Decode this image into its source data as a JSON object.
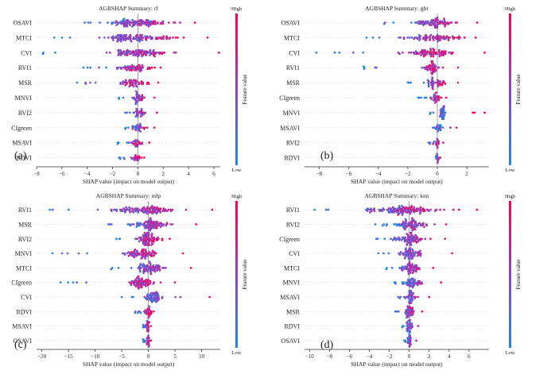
{
  "colors": {
    "low": "#1e88e5",
    "high": "#ff0052",
    "grid": "#d0d0d0",
    "axis": "#333333",
    "zero": "#888888"
  },
  "chart_data": [
    {
      "type": "scatter",
      "subtype": "shap-beeswarm",
      "title": "AGBSHAP Summary: rf",
      "panel_label": "(a)",
      "xlabel": "SHAP value (impact on model output)",
      "colorbar_label": "Feature value",
      "colorbar_high": "High",
      "colorbar_low": "Low",
      "xlim": [
        -8,
        6.5
      ],
      "xticks": [
        -8,
        -6,
        -4,
        -2,
        0,
        2,
        4,
        6
      ],
      "features": [
        {
          "name": "OSAVI",
          "min": -4.2,
          "max": 4.5,
          "spread": 2.2,
          "density": 110
        },
        {
          "name": "MTCI",
          "min": -6.6,
          "max": 5.5,
          "spread": 2.6,
          "density": 110
        },
        {
          "name": "CVI",
          "min": -7.5,
          "max": 6.4,
          "spread": 1.8,
          "density": 100
        },
        {
          "name": "RVI1",
          "min": -4.3,
          "max": 1.8,
          "spread": 1.2,
          "density": 60
        },
        {
          "name": "MSR",
          "min": -4.8,
          "max": 1.6,
          "spread": 1.0,
          "density": 55
        },
        {
          "name": "MNVI",
          "min": -1.5,
          "max": 1.3,
          "spread": 0.5,
          "density": 35
        },
        {
          "name": "RVI2",
          "min": -1.0,
          "max": 1.5,
          "spread": 0.5,
          "density": 30
        },
        {
          "name": "CIgreen",
          "min": -1.0,
          "max": 1.3,
          "spread": 0.4,
          "density": 30
        },
        {
          "name": "MSAVI",
          "min": -1.6,
          "max": 0.9,
          "spread": 0.4,
          "density": 28
        },
        {
          "name": "RDVI",
          "min": -1.5,
          "max": 0.5,
          "spread": 0.3,
          "density": 24
        }
      ]
    },
    {
      "type": "scatter",
      "subtype": "shap-beeswarm",
      "title": "AGBSHAP Summary: gbr",
      "panel_label": "(b)",
      "xlabel": "SHAP value (impact on model output)",
      "colorbar_label": "Feature value",
      "colorbar_high": "High",
      "colorbar_low": "Low",
      "xlim": [
        -9,
        3.5
      ],
      "xticks": [
        -8,
        -6,
        -4,
        -2,
        0,
        2
      ],
      "features": [
        {
          "name": "OSAVI",
          "min": -3.6,
          "max": 2.7,
          "spread": 1.4,
          "density": 80
        },
        {
          "name": "MTCI",
          "min": -4.8,
          "max": 2.6,
          "spread": 1.6,
          "density": 80
        },
        {
          "name": "CVI",
          "min": -8.2,
          "max": 3.2,
          "spread": 1.5,
          "density": 80
        },
        {
          "name": "RVI1",
          "min": -5.0,
          "max": 1.4,
          "spread": 0.6,
          "density": 50
        },
        {
          "name": "MSR",
          "min": -2.0,
          "max": 1.4,
          "spread": 0.5,
          "density": 45
        },
        {
          "name": "CIgreen",
          "min": -1.3,
          "max": 0.6,
          "spread": 0.3,
          "density": 30
        },
        {
          "name": "MNVI",
          "min": -0.5,
          "max": 3.2,
          "spread": 0.2,
          "density": 35
        },
        {
          "name": "MSAVI",
          "min": -0.3,
          "max": 1.3,
          "spread": 0.2,
          "density": 22
        },
        {
          "name": "RVI2",
          "min": -0.6,
          "max": 0.4,
          "spread": 0.15,
          "density": 18
        },
        {
          "name": "RDVI",
          "min": -0.1,
          "max": 0.2,
          "spread": 0.05,
          "density": 12
        }
      ]
    },
    {
      "type": "scatter",
      "subtype": "shap-beeswarm",
      "title": "AGBSHAP Summary: mlp",
      "panel_label": "(c)",
      "xlabel": "SHAP value (impact on model output)",
      "colorbar_label": "Feature value",
      "colorbar_high": "High",
      "colorbar_low": "Low",
      "xlim": [
        -21,
        13.5
      ],
      "xticks": [
        -20,
        -15,
        -10,
        -5,
        0,
        5,
        10
      ],
      "features": [
        {
          "name": "RVI1",
          "min": -18.5,
          "max": 12.0,
          "spread": 5.0,
          "density": 110
        },
        {
          "name": "MSR",
          "min": -7.5,
          "max": 9.0,
          "spread": 3.0,
          "density": 90
        },
        {
          "name": "RVI2",
          "min": -6.0,
          "max": 4.0,
          "spread": 2.0,
          "density": 80
        },
        {
          "name": "MNVI",
          "min": -18.0,
          "max": 6.5,
          "spread": 2.4,
          "density": 80
        },
        {
          "name": "MTCI",
          "min": -7.0,
          "max": 8.0,
          "spread": 2.2,
          "density": 75
        },
        {
          "name": "CIgreen",
          "min": -16.5,
          "max": 5.0,
          "spread": 2.0,
          "density": 75
        },
        {
          "name": "CVI",
          "min": -5.0,
          "max": 11.5,
          "spread": 1.5,
          "density": 60
        },
        {
          "name": "RDVI",
          "min": -2.5,
          "max": 1.0,
          "spread": 0.7,
          "density": 30
        },
        {
          "name": "MSAVI",
          "min": -1.0,
          "max": 0.5,
          "spread": 0.35,
          "density": 22
        },
        {
          "name": "OSAVI",
          "min": -1.0,
          "max": 0.5,
          "spread": 0.3,
          "density": 20
        }
      ]
    },
    {
      "type": "scatter",
      "subtype": "shap-beeswarm",
      "title": "AGBSHAP Summary: knn",
      "panel_label": "(d)",
      "xlabel": "SHAP value (impact on model output)",
      "colorbar_label": "Feature value",
      "colorbar_high": "High",
      "colorbar_low": "Low",
      "xlim": [
        -10.5,
        8
      ],
      "xticks": [
        -10,
        -8,
        -6,
        -4,
        -2,
        0,
        2,
        4,
        6
      ],
      "features": [
        {
          "name": "RVI1",
          "min": -9.5,
          "max": 6.8,
          "spread": 3.8,
          "density": 130
        },
        {
          "name": "RVI2",
          "min": -3.4,
          "max": 3.7,
          "spread": 1.6,
          "density": 80
        },
        {
          "name": "CIgreen",
          "min": -3.3,
          "max": 3.6,
          "spread": 1.5,
          "density": 80
        },
        {
          "name": "CVI",
          "min": -3.1,
          "max": 4.3,
          "spread": 1.0,
          "density": 65
        },
        {
          "name": "MTCI",
          "min": -2.3,
          "max": 2.4,
          "spread": 0.9,
          "density": 60
        },
        {
          "name": "MNVI",
          "min": -1.5,
          "max": 3.2,
          "spread": 0.8,
          "density": 50
        },
        {
          "name": "MSAVI",
          "min": -1.1,
          "max": 2.0,
          "spread": 0.5,
          "density": 40
        },
        {
          "name": "MSR",
          "min": -1.4,
          "max": 1.3,
          "spread": 0.5,
          "density": 40
        },
        {
          "name": "RDVI",
          "min": -0.7,
          "max": 0.9,
          "spread": 0.3,
          "density": 30
        },
        {
          "name": "OSAVI",
          "min": -0.5,
          "max": 0.7,
          "spread": 0.25,
          "density": 26
        }
      ]
    }
  ]
}
